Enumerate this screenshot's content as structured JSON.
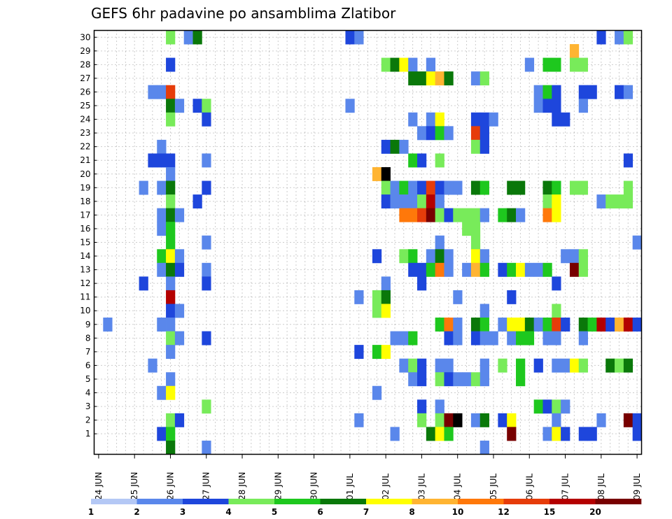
{
  "chart_data": {
    "type": "heatmap",
    "title": "GEFS 6hr padavine po ansamblima Zlatibor",
    "xlabel": "",
    "ylabel": "",
    "x_tick_labels": [
      "24 JUN",
      "25 JUN",
      "26 JUN",
      "27 JUN",
      "28 JUN",
      "29 JUN",
      "30 JUN",
      "01 JUL",
      "02 JUL",
      "03 JUL",
      "04 JUL",
      "05 JUL",
      "06 JUL",
      "07 JUL",
      "08 JUL",
      "09 JUL"
    ],
    "steps_per_day": 4,
    "y_tick_labels": [
      "1",
      "2",
      "3",
      "4",
      "5",
      "6",
      "7",
      "8",
      "9",
      "10",
      "11",
      "12",
      "13",
      "14",
      "15",
      "16",
      "17",
      "18",
      "19",
      "20",
      "21",
      "22",
      "23",
      "24",
      "25",
      "26",
      "27",
      "28",
      "29",
      "30"
    ],
    "grid": true,
    "legend": {
      "placement": "bottom",
      "labels": [
        "1",
        "2",
        "3",
        "4",
        "5",
        "6",
        "7",
        "8",
        "10",
        "12",
        "15",
        "20"
      ],
      "colors": [
        "#b4c8f5",
        "#5a87eb",
        "#1e46dc",
        "#78eb5a",
        "#1ec81e",
        "#0a780a",
        "#ffff00",
        "#ffb432",
        "#ff780a",
        "#e63c0a",
        "#b40000",
        "#780000"
      ]
    },
    "cells": [
      [
        8,
        30,
        3
      ],
      [
        10,
        30,
        1
      ],
      [
        11,
        30,
        5
      ],
      [
        28,
        30,
        2
      ],
      [
        29,
        30,
        1
      ],
      [
        56,
        30,
        2
      ],
      [
        58,
        30,
        1
      ],
      [
        59,
        30,
        3
      ],
      [
        53,
        29,
        7
      ],
      [
        8,
        28,
        2
      ],
      [
        32,
        28,
        3
      ],
      [
        33,
        28,
        5
      ],
      [
        34,
        28,
        6
      ],
      [
        35,
        28,
        1
      ],
      [
        37,
        28,
        1
      ],
      [
        48,
        28,
        1
      ],
      [
        50,
        28,
        4
      ],
      [
        51,
        28,
        4
      ],
      [
        53,
        28,
        3
      ],
      [
        54,
        28,
        3
      ],
      [
        35,
        27,
        5
      ],
      [
        36,
        27,
        5
      ],
      [
        37,
        27,
        6
      ],
      [
        38,
        27,
        7
      ],
      [
        39,
        27,
        5
      ],
      [
        42,
        27,
        1
      ],
      [
        43,
        27,
        3
      ],
      [
        6,
        26,
        1
      ],
      [
        7,
        26,
        1
      ],
      [
        8,
        26,
        9
      ],
      [
        49,
        26,
        1
      ],
      [
        50,
        26,
        4
      ],
      [
        51,
        26,
        2
      ],
      [
        54,
        26,
        2
      ],
      [
        55,
        26,
        2
      ],
      [
        58,
        26,
        2
      ],
      [
        59,
        26,
        1
      ],
      [
        8,
        25,
        5
      ],
      [
        9,
        25,
        1
      ],
      [
        11,
        25,
        2
      ],
      [
        12,
        25,
        3
      ],
      [
        28,
        25,
        1
      ],
      [
        49,
        25,
        1
      ],
      [
        50,
        25,
        2
      ],
      [
        51,
        25,
        2
      ],
      [
        54,
        25,
        1
      ],
      [
        8,
        24,
        3
      ],
      [
        12,
        24,
        2
      ],
      [
        35,
        24,
        1
      ],
      [
        37,
        24,
        1
      ],
      [
        38,
        24,
        6
      ],
      [
        42,
        24,
        2
      ],
      [
        43,
        24,
        2
      ],
      [
        44,
        24,
        1
      ],
      [
        51,
        24,
        2
      ],
      [
        52,
        24,
        2
      ],
      [
        36,
        23,
        1
      ],
      [
        37,
        23,
        2
      ],
      [
        38,
        23,
        4
      ],
      [
        39,
        23,
        1
      ],
      [
        42,
        23,
        9
      ],
      [
        43,
        23,
        2
      ],
      [
        7,
        22,
        1
      ],
      [
        32,
        22,
        2
      ],
      [
        33,
        22,
        5
      ],
      [
        34,
        22,
        1
      ],
      [
        42,
        22,
        3
      ],
      [
        43,
        22,
        2
      ],
      [
        6,
        21,
        2
      ],
      [
        7,
        21,
        2
      ],
      [
        8,
        21,
        2
      ],
      [
        12,
        21,
        1
      ],
      [
        35,
        21,
        4
      ],
      [
        36,
        21,
        2
      ],
      [
        38,
        21,
        3
      ],
      [
        59,
        21,
        2
      ],
      [
        8,
        20,
        1
      ],
      [
        31,
        20,
        7
      ],
      [
        32,
        20,
        12
      ],
      [
        5,
        19,
        1
      ],
      [
        7,
        19,
        1
      ],
      [
        8,
        19,
        5
      ],
      [
        12,
        19,
        2
      ],
      [
        32,
        19,
        3
      ],
      [
        33,
        19,
        1
      ],
      [
        34,
        19,
        4
      ],
      [
        35,
        19,
        1
      ],
      [
        36,
        19,
        2
      ],
      [
        37,
        19,
        9
      ],
      [
        38,
        19,
        2
      ],
      [
        39,
        19,
        1
      ],
      [
        40,
        19,
        1
      ],
      [
        42,
        19,
        5
      ],
      [
        43,
        19,
        4
      ],
      [
        46,
        19,
        5
      ],
      [
        47,
        19,
        5
      ],
      [
        50,
        19,
        5
      ],
      [
        51,
        19,
        4
      ],
      [
        53,
        19,
        3
      ],
      [
        54,
        19,
        3
      ],
      [
        59,
        19,
        3
      ],
      [
        8,
        18,
        3
      ],
      [
        11,
        18,
        2
      ],
      [
        32,
        18,
        2
      ],
      [
        33,
        18,
        1
      ],
      [
        34,
        18,
        1
      ],
      [
        35,
        18,
        1
      ],
      [
        36,
        18,
        3
      ],
      [
        37,
        18,
        10
      ],
      [
        38,
        18,
        1
      ],
      [
        50,
        18,
        3
      ],
      [
        51,
        18,
        6
      ],
      [
        56,
        18,
        1
      ],
      [
        57,
        18,
        3
      ],
      [
        58,
        18,
        3
      ],
      [
        59,
        18,
        3
      ],
      [
        7,
        17,
        1
      ],
      [
        8,
        17,
        5
      ],
      [
        9,
        17,
        1
      ],
      [
        34,
        17,
        8
      ],
      [
        35,
        17,
        8
      ],
      [
        36,
        17,
        9
      ],
      [
        37,
        17,
        11
      ],
      [
        38,
        17,
        3
      ],
      [
        39,
        17,
        2
      ],
      [
        40,
        17,
        3
      ],
      [
        41,
        17,
        3
      ],
      [
        42,
        17,
        3
      ],
      [
        43,
        17,
        1
      ],
      [
        45,
        17,
        4
      ],
      [
        46,
        17,
        5
      ],
      [
        47,
        17,
        1
      ],
      [
        50,
        17,
        8
      ],
      [
        51,
        17,
        6
      ],
      [
        7,
        16,
        1
      ],
      [
        8,
        16,
        4
      ],
      [
        41,
        16,
        3
      ],
      [
        42,
        16,
        3
      ],
      [
        8,
        15,
        4
      ],
      [
        12,
        15,
        1
      ],
      [
        38,
        15,
        1
      ],
      [
        42,
        15,
        3
      ],
      [
        60,
        15,
        1
      ],
      [
        7,
        14,
        4
      ],
      [
        8,
        14,
        6
      ],
      [
        9,
        14,
        1
      ],
      [
        31,
        14,
        2
      ],
      [
        34,
        14,
        3
      ],
      [
        35,
        14,
        4
      ],
      [
        37,
        14,
        1
      ],
      [
        38,
        14,
        5
      ],
      [
        39,
        14,
        1
      ],
      [
        42,
        14,
        6
      ],
      [
        43,
        14,
        1
      ],
      [
        52,
        14,
        1
      ],
      [
        53,
        14,
        1
      ],
      [
        54,
        14,
        3
      ],
      [
        7,
        13,
        1
      ],
      [
        8,
        13,
        5
      ],
      [
        9,
        13,
        2
      ],
      [
        12,
        13,
        1
      ],
      [
        35,
        13,
        2
      ],
      [
        36,
        13,
        2
      ],
      [
        37,
        13,
        4
      ],
      [
        38,
        13,
        8
      ],
      [
        39,
        13,
        1
      ],
      [
        41,
        13,
        1
      ],
      [
        42,
        13,
        7
      ],
      [
        43,
        13,
        4
      ],
      [
        45,
        13,
        2
      ],
      [
        46,
        13,
        4
      ],
      [
        47,
        13,
        6
      ],
      [
        48,
        13,
        1
      ],
      [
        49,
        13,
        1
      ],
      [
        50,
        13,
        4
      ],
      [
        53,
        13,
        11
      ],
      [
        54,
        13,
        3
      ],
      [
        5,
        12,
        2
      ],
      [
        8,
        12,
        1
      ],
      [
        12,
        12,
        2
      ],
      [
        32,
        12,
        1
      ],
      [
        36,
        12,
        2
      ],
      [
        51,
        12,
        2
      ],
      [
        8,
        11,
        10
      ],
      [
        29,
        11,
        1
      ],
      [
        31,
        11,
        3
      ],
      [
        32,
        11,
        5
      ],
      [
        40,
        11,
        1
      ],
      [
        46,
        11,
        2
      ],
      [
        8,
        10,
        2
      ],
      [
        9,
        10,
        1
      ],
      [
        31,
        10,
        3
      ],
      [
        32,
        10,
        6
      ],
      [
        43,
        10,
        1
      ],
      [
        51,
        10,
        3
      ],
      [
        1,
        9,
        1
      ],
      [
        7,
        9,
        1
      ],
      [
        8,
        9,
        1
      ],
      [
        38,
        9,
        4
      ],
      [
        39,
        9,
        8
      ],
      [
        40,
        9,
        1
      ],
      [
        42,
        9,
        5
      ],
      [
        43,
        9,
        4
      ],
      [
        45,
        9,
        1
      ],
      [
        46,
        9,
        6
      ],
      [
        47,
        9,
        6
      ],
      [
        48,
        9,
        5
      ],
      [
        49,
        9,
        1
      ],
      [
        50,
        9,
        4
      ],
      [
        51,
        9,
        9
      ],
      [
        52,
        9,
        2
      ],
      [
        54,
        9,
        5
      ],
      [
        55,
        9,
        4
      ],
      [
        56,
        9,
        10
      ],
      [
        57,
        9,
        2
      ],
      [
        58,
        9,
        7
      ],
      [
        59,
        9,
        10
      ],
      [
        60,
        9,
        2
      ],
      [
        8,
        8,
        3
      ],
      [
        9,
        8,
        1
      ],
      [
        12,
        8,
        2
      ],
      [
        33,
        8,
        1
      ],
      [
        34,
        8,
        1
      ],
      [
        35,
        8,
        4
      ],
      [
        39,
        8,
        2
      ],
      [
        40,
        8,
        1
      ],
      [
        42,
        8,
        2
      ],
      [
        43,
        8,
        1
      ],
      [
        44,
        8,
        1
      ],
      [
        46,
        8,
        1
      ],
      [
        47,
        8,
        4
      ],
      [
        48,
        8,
        4
      ],
      [
        50,
        8,
        1
      ],
      [
        51,
        8,
        1
      ],
      [
        54,
        8,
        1
      ],
      [
        8,
        7,
        1
      ],
      [
        29,
        7,
        2
      ],
      [
        31,
        7,
        4
      ],
      [
        32,
        7,
        6
      ],
      [
        6,
        6,
        1
      ],
      [
        34,
        6,
        1
      ],
      [
        35,
        6,
        3
      ],
      [
        36,
        6,
        2
      ],
      [
        38,
        6,
        1
      ],
      [
        39,
        6,
        1
      ],
      [
        43,
        6,
        1
      ],
      [
        45,
        6,
        3
      ],
      [
        47,
        6,
        4
      ],
      [
        49,
        6,
        2
      ],
      [
        51,
        6,
        1
      ],
      [
        52,
        6,
        1
      ],
      [
        53,
        6,
        6
      ],
      [
        54,
        6,
        3
      ],
      [
        57,
        6,
        5
      ],
      [
        58,
        6,
        3
      ],
      [
        59,
        6,
        5
      ],
      [
        8,
        5,
        1
      ],
      [
        35,
        5,
        1
      ],
      [
        36,
        5,
        2
      ],
      [
        38,
        5,
        3
      ],
      [
        39,
        5,
        2
      ],
      [
        40,
        5,
        1
      ],
      [
        41,
        5,
        1
      ],
      [
        42,
        5,
        3
      ],
      [
        43,
        5,
        1
      ],
      [
        47,
        5,
        4
      ],
      [
        7,
        4,
        1
      ],
      [
        8,
        4,
        6
      ],
      [
        31,
        4,
        1
      ],
      [
        12,
        3,
        3
      ],
      [
        36,
        3,
        2
      ],
      [
        38,
        3,
        1
      ],
      [
        49,
        3,
        4
      ],
      [
        50,
        3,
        2
      ],
      [
        51,
        3,
        3
      ],
      [
        52,
        3,
        1
      ],
      [
        8,
        2,
        3
      ],
      [
        9,
        2,
        2
      ],
      [
        29,
        2,
        1
      ],
      [
        36,
        2,
        3
      ],
      [
        38,
        2,
        3
      ],
      [
        39,
        2,
        11
      ],
      [
        40,
        2,
        12
      ],
      [
        42,
        2,
        1
      ],
      [
        43,
        2,
        5
      ],
      [
        45,
        2,
        2
      ],
      [
        46,
        2,
        6
      ],
      [
        51,
        2,
        1
      ],
      [
        56,
        2,
        1
      ],
      [
        59,
        2,
        11
      ],
      [
        60,
        2,
        2
      ],
      [
        7,
        1,
        2
      ],
      [
        8,
        1,
        4
      ],
      [
        33,
        1,
        1
      ],
      [
        37,
        1,
        5
      ],
      [
        38,
        1,
        6
      ],
      [
        39,
        1,
        4
      ],
      [
        46,
        1,
        11
      ],
      [
        50,
        1,
        1
      ],
      [
        51,
        1,
        6
      ],
      [
        52,
        1,
        2
      ],
      [
        54,
        1,
        2
      ],
      [
        55,
        1,
        2
      ],
      [
        60,
        1,
        2
      ],
      [
        8,
        0,
        5
      ],
      [
        12,
        0,
        1
      ],
      [
        43,
        0,
        1
      ]
    ]
  }
}
